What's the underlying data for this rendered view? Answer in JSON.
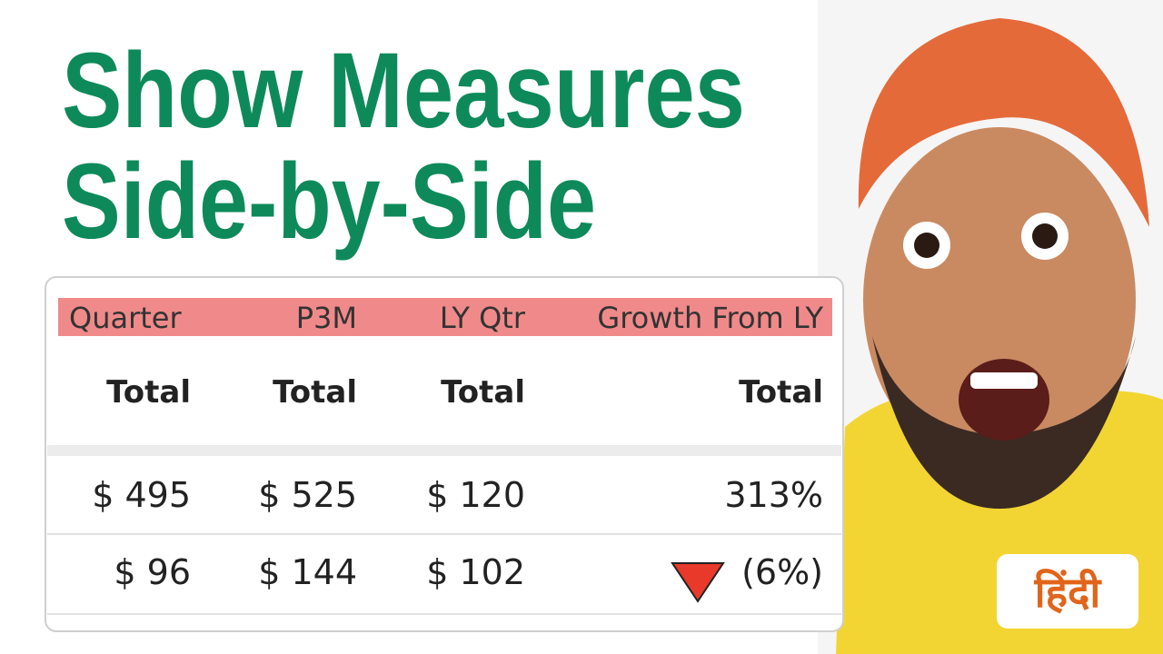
{
  "title": {
    "lines": [
      "Show Measures",
      "Side-by-Side"
    ]
  },
  "table": {
    "headers": [
      "Quarter",
      "P3M",
      "LY Qtr",
      "Growth From LY"
    ],
    "subheaders": [
      "Total",
      "Total",
      "Total",
      "Total"
    ],
    "rows": [
      [
        "$ 495",
        "$ 525",
        "$ 120",
        "313%"
      ],
      [
        "$ 96",
        "$ 144",
        "$ 102",
        "(6%)"
      ]
    ]
  },
  "badge": "हिंदी"
}
